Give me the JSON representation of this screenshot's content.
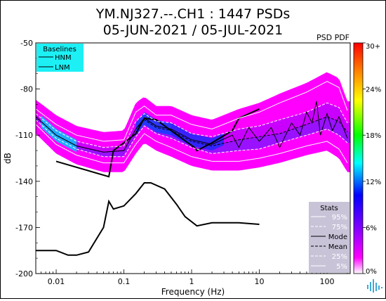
{
  "title_line1": "YM.NJ327.--.CH1 : 1447 PSDs",
  "title_line2": "05-JUN-2021 / 05-JUL-2021",
  "pdf_label": "PSD PDF",
  "colors": {
    "hnm": "#000000",
    "lnm": "#000000",
    "baselines_box": "#1cf0f5",
    "stats_box": "#c9c3d8",
    "background_psd": "#ff00ff"
  },
  "chart_data": {
    "type": "heatmap",
    "xlabel": "Frequency (Hz)",
    "ylabel": "dB",
    "xscale": "log",
    "xlim": [
      0.005,
      220
    ],
    "ylim": [
      -200,
      -50
    ],
    "xticks": [
      {
        "value": 0.01,
        "label": "0.01"
      },
      {
        "value": 0.1,
        "label": "0.1"
      },
      {
        "value": 1,
        "label": "1"
      },
      {
        "value": 10,
        "label": "10"
      },
      {
        "value": 100,
        "label": "100"
      }
    ],
    "yticks": [
      {
        "value": -50,
        "label": "-50"
      },
      {
        "value": -80,
        "label": "-80"
      },
      {
        "value": -110,
        "label": "-110"
      },
      {
        "value": -140,
        "label": "-140"
      },
      {
        "value": -170,
        "label": "-170"
      },
      {
        "value": -200,
        "label": "-200"
      }
    ],
    "colorbar": {
      "ticks": [
        "30+",
        "24%",
        "18%",
        "12%",
        "6%",
        "0%"
      ],
      "colors": [
        "#ff0000",
        "#ff8000",
        "#ffff00",
        "#00ff00",
        "#00ffff",
        "#0000ff",
        "#8000ff",
        "#ff00ff",
        "#ffffff"
      ]
    },
    "baselines_legend": {
      "title": "Baselines",
      "items": [
        "HNM",
        "LNM"
      ]
    },
    "stats_legend": {
      "title": "Stats",
      "items": [
        "95%",
        "75%",
        "Mode",
        "Mean",
        "25%",
        "5%"
      ]
    },
    "series": [
      {
        "name": "HNM",
        "x": [
          0.01,
          0.06,
          0.07,
          0.1,
          0.15,
          0.2,
          0.3,
          1.1,
          1.2,
          2,
          4,
          5,
          10
        ],
        "y": [
          -127,
          -137,
          -120,
          -115,
          -109,
          -99,
          -100,
          -118,
          -120,
          -115,
          -107,
          -99,
          -93
        ]
      },
      {
        "name": "LNM",
        "x": [
          0.005,
          0.01,
          0.015,
          0.02,
          0.03,
          0.05,
          0.06,
          0.07,
          0.1,
          0.15,
          0.2,
          0.25,
          0.4,
          0.6,
          0.8,
          1.2,
          2,
          5,
          10
        ],
        "y": [
          -185,
          -185,
          -188,
          -188,
          -186,
          -170,
          -153,
          -158,
          -156,
          -148,
          -141,
          -141,
          -145,
          -155,
          -163,
          -169,
          -167,
          -167,
          -168
        ]
      },
      {
        "name": "95%",
        "x": [
          0.005,
          0.01,
          0.02,
          0.05,
          0.1,
          0.15,
          0.2,
          0.3,
          0.5,
          1,
          2,
          5,
          10,
          20,
          50,
          100,
          150,
          200
        ],
        "y": [
          -93,
          -103,
          -110,
          -114,
          -113,
          -95,
          -91,
          -97,
          -97,
          -103,
          -106,
          -99,
          -95,
          -89,
          -82,
          -75,
          -79,
          -94
        ]
      },
      {
        "name": "75%",
        "x": [
          0.005,
          0.01,
          0.02,
          0.05,
          0.1,
          0.15,
          0.2,
          0.3,
          0.5,
          1,
          2,
          5,
          10,
          20,
          50,
          100,
          150,
          200
        ],
        "y": [
          -96,
          -107,
          -114,
          -118,
          -117,
          -101,
          -96,
          -101,
          -102,
          -109,
          -111,
          -106,
          -104,
          -100,
          -95,
          -89,
          -92,
          -102
        ]
      },
      {
        "name": "Mode",
        "x": [
          0.005,
          0.01,
          0.02,
          0.05,
          0.1,
          0.15,
          0.2,
          0.3,
          0.5,
          1,
          2,
          4,
          5,
          7,
          10,
          15,
          20,
          30,
          40,
          50,
          60,
          70,
          80,
          100,
          120,
          150,
          200
        ],
        "y": [
          -98,
          -110,
          -117,
          -121,
          -120,
          -106,
          -99,
          -104,
          -106,
          -113,
          -116,
          -110,
          -118,
          -105,
          -114,
          -105,
          -118,
          -102,
          -110,
          -95,
          -102,
          -88,
          -110,
          -96,
          -107,
          -98,
          -112
        ]
      },
      {
        "name": "Mean",
        "x": [
          0.005,
          0.01,
          0.02,
          0.05,
          0.1,
          0.15,
          0.2,
          0.3,
          0.5,
          1,
          2,
          5,
          10,
          20,
          50,
          100,
          150,
          200
        ],
        "y": [
          -98,
          -110,
          -117,
          -121,
          -120,
          -106,
          -100,
          -105,
          -107,
          -114,
          -117,
          -113,
          -111,
          -109,
          -103,
          -98,
          -101,
          -108
        ]
      },
      {
        "name": "25%",
        "x": [
          0.005,
          0.01,
          0.02,
          0.05,
          0.1,
          0.15,
          0.2,
          0.3,
          0.5,
          1,
          2,
          5,
          10,
          20,
          50,
          100,
          150,
          200
        ],
        "y": [
          -100,
          -112,
          -119,
          -124,
          -124,
          -111,
          -104,
          -109,
          -112,
          -118,
          -122,
          -120,
          -119,
          -115,
          -110,
          -106,
          -110,
          -115
        ]
      },
      {
        "name": "5%",
        "x": [
          0.005,
          0.01,
          0.02,
          0.05,
          0.1,
          0.15,
          0.2,
          0.3,
          0.5,
          1,
          2,
          5,
          10,
          20,
          50,
          100,
          150,
          200
        ],
        "y": [
          -103,
          -116,
          -123,
          -128,
          -128,
          -116,
          -109,
          -114,
          -118,
          -124,
          -127,
          -127,
          -125,
          -122,
          -117,
          -114,
          -119,
          -128
        ]
      }
    ]
  }
}
